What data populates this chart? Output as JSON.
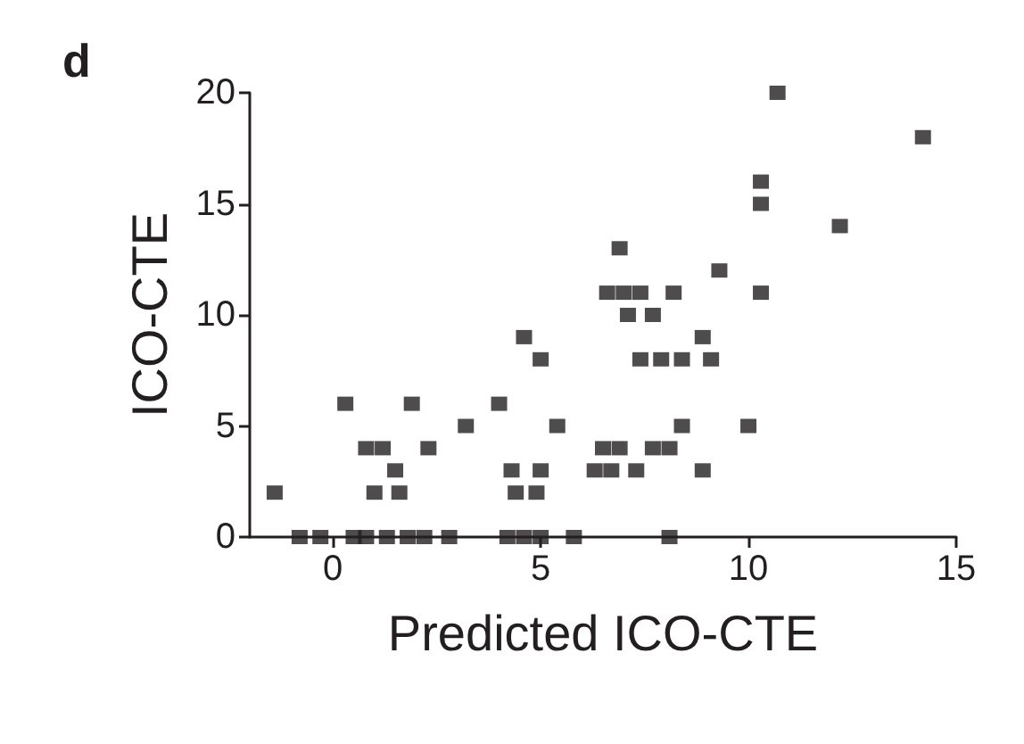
{
  "chart_data": {
    "type": "scatter",
    "title": "d",
    "xlabel": "Predicted ICO-CTE",
    "ylabel": "ICO-CTE",
    "xlim": [
      -2,
      15
    ],
    "ylim": [
      0,
      20
    ],
    "xticks": [
      0,
      5,
      10,
      15
    ],
    "yticks": [
      0,
      5,
      10,
      15,
      20
    ],
    "grid": false,
    "marker": "square",
    "series": [
      {
        "color": "#231f20",
        "x": [
          -1.4,
          -0.8,
          -0.3,
          0.5,
          0.8,
          1.3,
          1.8,
          2.2,
          2.8,
          4.2,
          4.6,
          5.0,
          5.8,
          8.1,
          0.3,
          0.8,
          1.2,
          1.5,
          1.0,
          1.6,
          1.9,
          2.3,
          3.2,
          4.0,
          4.6,
          5.0,
          5.4,
          4.3,
          5.0,
          4.4,
          4.9,
          10.7,
          14.2,
          10.3,
          10.3,
          12.2,
          6.9,
          9.3,
          6.6,
          7.0,
          7.4,
          8.2,
          10.3,
          7.1,
          7.7,
          8.9,
          7.4,
          7.9,
          8.4,
          9.1,
          8.4,
          10.0,
          6.5,
          6.9,
          7.7,
          8.1,
          6.3,
          6.7,
          7.3,
          8.9
        ],
        "values": [
          2,
          0,
          0,
          0,
          0,
          0,
          0,
          0,
          0,
          0,
          0,
          0,
          0,
          0,
          6,
          4,
          4,
          3,
          2,
          2,
          6,
          4,
          5,
          6,
          9,
          8,
          5,
          3,
          3,
          2,
          2,
          20,
          18,
          16,
          15,
          14,
          13,
          12,
          11,
          11,
          11,
          11,
          11,
          10,
          10,
          9,
          8,
          8,
          8,
          8,
          5,
          5,
          4,
          4,
          4,
          4,
          3,
          3,
          3,
          3
        ]
      }
    ]
  }
}
